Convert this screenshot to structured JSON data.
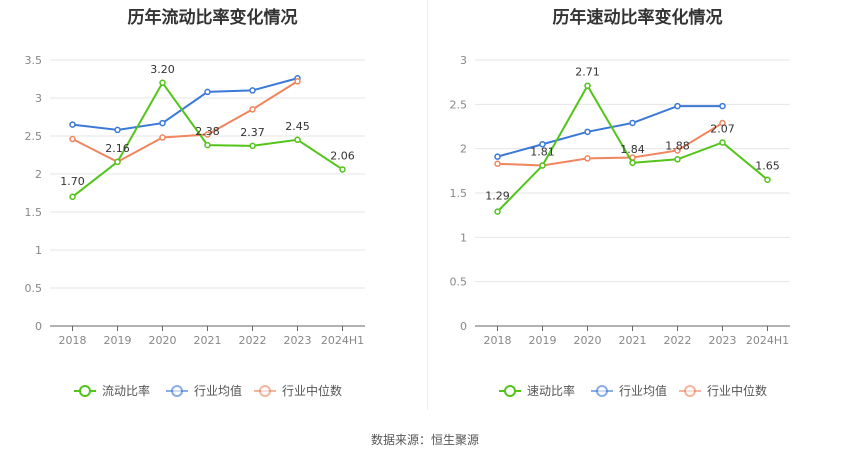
{
  "source_label": "数据来源：恒生聚源",
  "legend_labels": [
    "行业均值",
    "行业中位数"
  ],
  "colors": {
    "primary": "#52c41a",
    "industry_avg": "#3b78d8",
    "industry_median": "#f0855e"
  },
  "chart_data": [
    {
      "type": "line",
      "title": "历年流动比率变化情况",
      "categories": [
        "2018",
        "2019",
        "2020",
        "2021",
        "2022",
        "2023",
        "2024H1"
      ],
      "ylim": [
        0,
        3.5
      ],
      "yticks": [
        "0",
        "0.5",
        "1",
        "1.5",
        "2",
        "2.5",
        "3",
        "3.5"
      ],
      "series": [
        {
          "name": "流动比率",
          "values": [
            1.7,
            2.16,
            3.2,
            2.38,
            2.37,
            2.45,
            2.06
          ],
          "labels": [
            "1.70",
            "2.16",
            "3.20",
            "2.38",
            "2.37",
            "2.45",
            "2.06"
          ]
        },
        {
          "name": "行业均值",
          "values": [
            2.65,
            2.58,
            2.67,
            3.08,
            3.1,
            3.26,
            null
          ]
        },
        {
          "name": "行业中位数",
          "values": [
            2.46,
            2.16,
            2.48,
            2.52,
            2.85,
            3.22,
            null
          ]
        }
      ]
    },
    {
      "type": "line",
      "title": "历年速动比率变化情况",
      "categories": [
        "2018",
        "2019",
        "2020",
        "2021",
        "2022",
        "2023",
        "2024H1"
      ],
      "ylim": [
        0,
        3
      ],
      "yticks": [
        "0",
        "0.5",
        "1",
        "1.5",
        "2",
        "2.5",
        "3"
      ],
      "series": [
        {
          "name": "速动比率",
          "values": [
            1.29,
            1.81,
            2.71,
            1.84,
            1.88,
            2.07,
            1.65
          ],
          "labels": [
            "1.29",
            "1.81",
            "2.71",
            "1.84",
            "1.88",
            "2.07",
            "1.65"
          ]
        },
        {
          "name": "行业均值",
          "values": [
            1.91,
            2.05,
            2.19,
            2.29,
            2.48,
            2.48,
            null
          ]
        },
        {
          "name": "行业中位数",
          "values": [
            1.83,
            1.81,
            1.89,
            1.9,
            1.98,
            2.29,
            null
          ]
        }
      ]
    }
  ]
}
